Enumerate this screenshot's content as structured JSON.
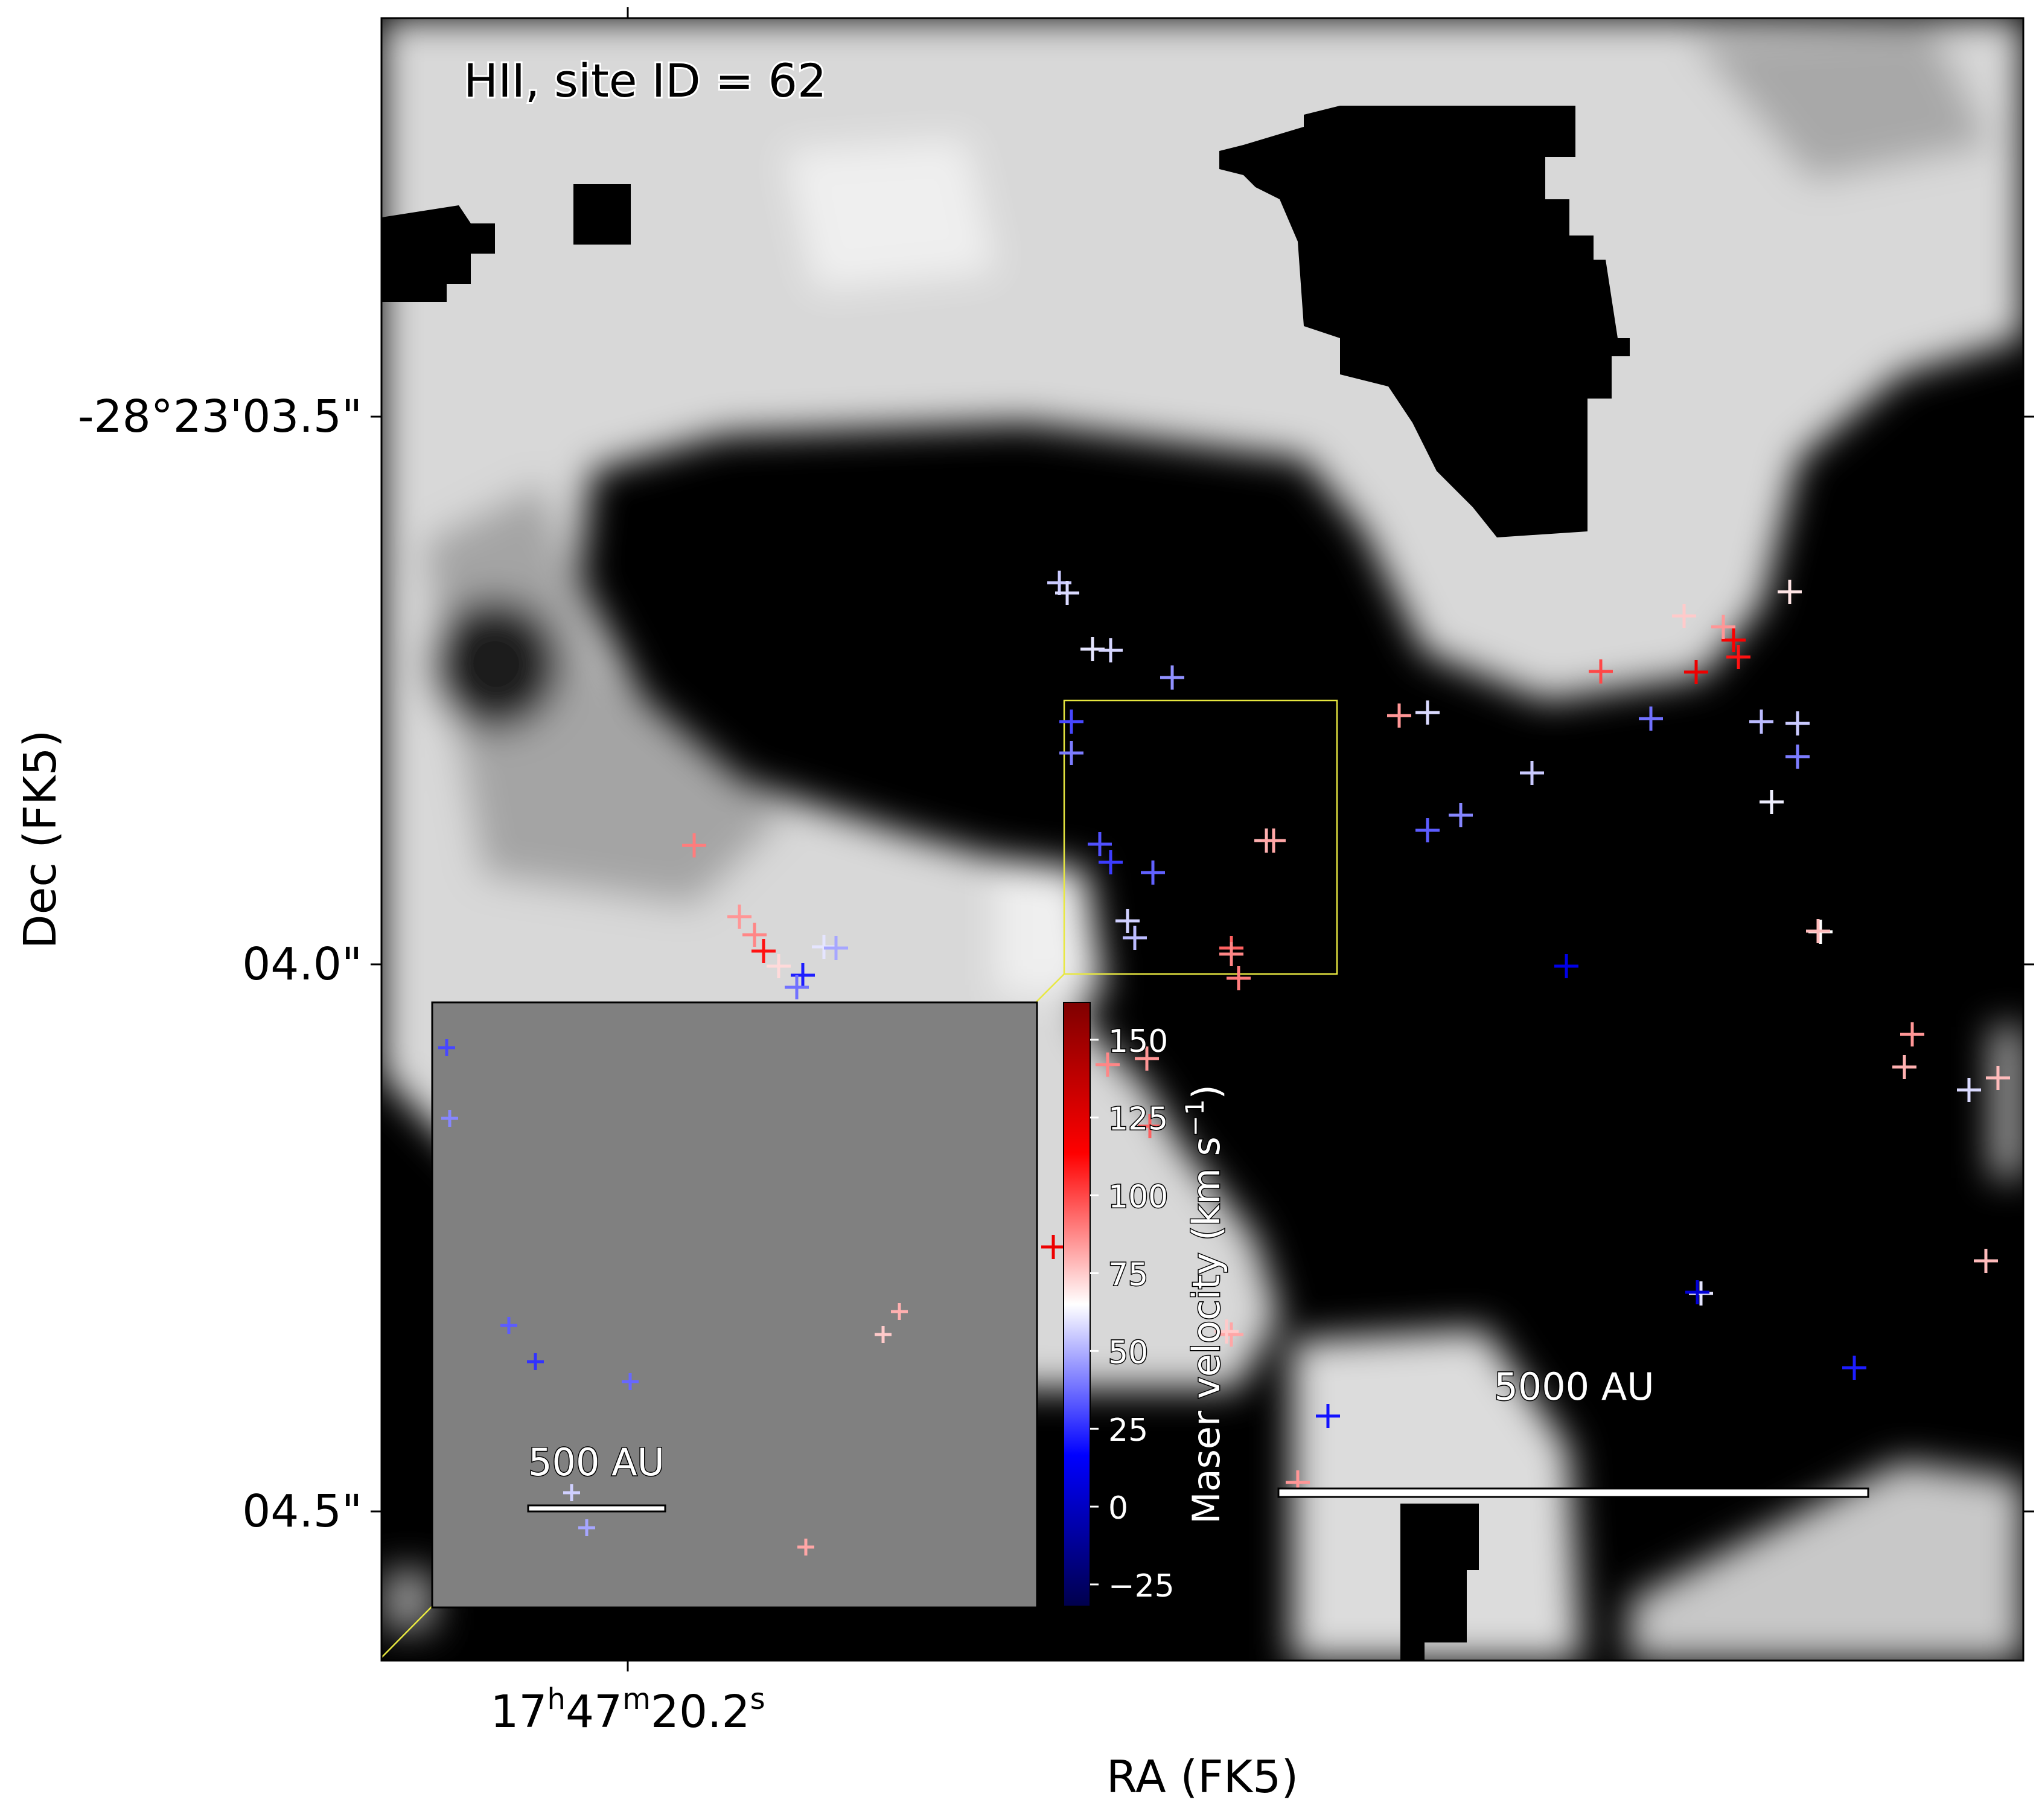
{
  "panel_label": "HII, site ID = 62",
  "x_axis": {
    "label": "RA (FK5)",
    "tick_hours": "17",
    "tick_minutes": "47",
    "tick_seconds": "20.2",
    "unit_h": "h",
    "unit_m": "m",
    "unit_s": "s"
  },
  "y_axis": {
    "label": "Dec (FK5)",
    "ticks": [
      "-28°23'03.5\"",
      "04.0\"",
      "04.5\""
    ]
  },
  "colorbar": {
    "label": "Maser velocity (km s",
    "label_sup": "−1",
    "label_close": ")",
    "ticks": [
      "150",
      "125",
      "100",
      "75",
      "50",
      "25",
      "0",
      "−25"
    ],
    "vmin": -32,
    "vmax": 162,
    "cmap": "seismic",
    "colors": {
      "low": "#00004c",
      "mid_low": "#0000ff",
      "center": "#ffffff",
      "mid_high": "#ff0000",
      "high": "#7f0000"
    }
  },
  "scalebar_main": {
    "label": "5000 AU"
  },
  "scalebar_inset": {
    "label": "500 AU"
  },
  "zoom_box_color": "#e8e840",
  "background": {
    "image": "grayscale continuum map",
    "mask_color": "#000000",
    "inset_fill": "#808080"
  },
  "masers": [
    {
      "v": 55
    },
    {
      "v": 58
    },
    {
      "v": 60
    },
    {
      "v": 57
    },
    {
      "v": 44
    },
    {
      "v": 30
    },
    {
      "v": 40
    },
    {
      "v": 32
    },
    {
      "v": 28
    },
    {
      "v": 35
    },
    {
      "v": 56
    },
    {
      "v": 52
    },
    {
      "v": 80
    },
    {
      "v": 82
    },
    {
      "v": 95
    },
    {
      "v": 90
    },
    {
      "v": 85
    },
    {
      "v": 60
    },
    {
      "v": 58
    },
    {
      "v": 100
    },
    {
      "v": 120
    },
    {
      "v": 115
    },
    {
      "v": 110
    },
    {
      "v": 85
    },
    {
      "v": 75
    },
    {
      "v": 70
    },
    {
      "v": 52
    },
    {
      "v": 55
    },
    {
      "v": 40
    },
    {
      "v": 38
    },
    {
      "v": 42
    },
    {
      "v": 10
    },
    {
      "v": 65
    },
    {
      "v": 85
    },
    {
      "v": 80
    },
    {
      "v": 78
    },
    {
      "v": 58
    },
    {
      "v": 55
    },
    {
      "v": 62
    },
    {
      "v": 88
    },
    {
      "v": 90
    },
    {
      "v": 85
    },
    {
      "v": 88
    },
    {
      "v": 110
    },
    {
      "v": 22
    },
    {
      "v": 60
    },
    {
      "v": 48
    },
    {
      "v": 38
    },
    {
      "v": 34
    },
    {
      "v": 78
    },
    {
      "v": 60
    },
    {
      "v": 120
    },
    {
      "v": 95
    },
    {
      "v": 85
    },
    {
      "v": 88
    },
    {
      "v": 5
    },
    {
      "v": 22
    },
    {
      "v": 82
    },
    {
      "v": 75
    },
    {
      "v": 78
    },
    {
      "v": 72
    },
    {
      "v": 20
    },
    {
      "v": 85
    }
  ],
  "inset_masers": [
    {
      "v": 30
    },
    {
      "v": 42
    },
    {
      "v": 34
    },
    {
      "v": 26
    },
    {
      "v": 36
    },
    {
      "v": 80
    },
    {
      "v": 75
    },
    {
      "v": 56
    },
    {
      "v": 48
    },
    {
      "v": 82
    }
  ]
}
